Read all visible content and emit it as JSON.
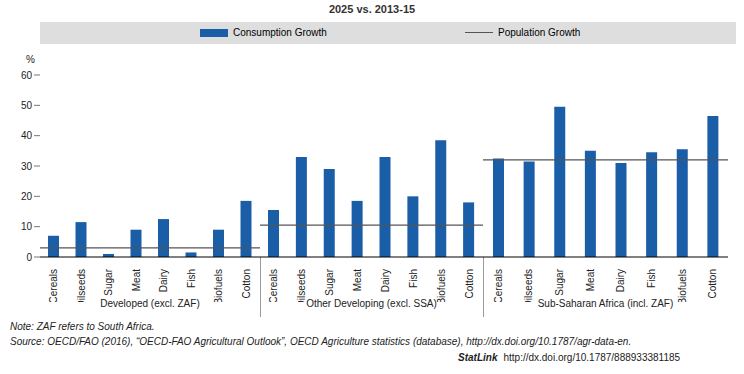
{
  "title": "2025 vs. 2013-15",
  "chart_data": [
    {
      "type": "bar",
      "title": "Developed (excl. ZAF)",
      "ylabel": "%",
      "categories": [
        "Cereals",
        "Oilseeds",
        "Sugar",
        "Meat",
        "Dairy",
        "Fish",
        "Biofuels",
        "Cotton"
      ],
      "series": [
        {
          "name": "Consumption Growth",
          "color": "#1a5ea8",
          "values": [
            7,
            11.5,
            1,
            9,
            12.5,
            1.5,
            9,
            18.5
          ]
        },
        {
          "name": "Population Growth",
          "type": "line",
          "color": "#555555",
          "value": 3
        }
      ],
      "ylim": [
        0,
        60
      ],
      "yticks": [
        0,
        10,
        20,
        30,
        40,
        50,
        60
      ],
      "grid": false
    },
    {
      "type": "bar",
      "title": "Other Developing (excl. SSA)",
      "categories": [
        "Cereals",
        "Oilseeds",
        "Sugar",
        "Meat",
        "Dairy",
        "Fish",
        "Biofuels",
        "Cotton"
      ],
      "series": [
        {
          "name": "Consumption Growth",
          "color": "#1a5ea8",
          "values": [
            15.5,
            33,
            29,
            18.5,
            33,
            20,
            38.5,
            18
          ]
        },
        {
          "name": "Population Growth",
          "type": "line",
          "color": "#555555",
          "value": 10.5
        }
      ],
      "ylim": [
        0,
        60
      ],
      "yticks": [
        0,
        10,
        20,
        30,
        40,
        50,
        60
      ],
      "grid": false,
      "tick_labels": "x"
    },
    {
      "type": "bar",
      "title": "Sub-Saharan Africa (incl. ZAF)",
      "categories": [
        "Cereals",
        "Oilseeds",
        "Sugar",
        "Meat",
        "Dairy",
        "Fish",
        "Biofuels",
        "Cotton"
      ],
      "series": [
        {
          "name": "Consumption Growth",
          "color": "#1a5ea8",
          "values": [
            32.5,
            31.5,
            49.5,
            35,
            31,
            34.5,
            35.5,
            46.5
          ]
        },
        {
          "name": "Population Growth",
          "type": "line",
          "color": "#555555",
          "value": 32
        }
      ],
      "ylim": [
        0,
        60
      ],
      "yticks": [
        0,
        10,
        20,
        30,
        40,
        50,
        60
      ],
      "grid": false,
      "tick_labels": "x"
    }
  ],
  "note": "Note: ZAF refers to South Africa.",
  "source": "Source: OECD/FAO (2016), “OECD-FAO Agricultural Outlook”, OECD Agriculture statistics (database), http://dx.doi.org/10.1787/agr-data-en.",
  "statlink": {
    "label": "StatLink",
    "url": "http://dx.doi.org/10.1787/888933381185"
  }
}
